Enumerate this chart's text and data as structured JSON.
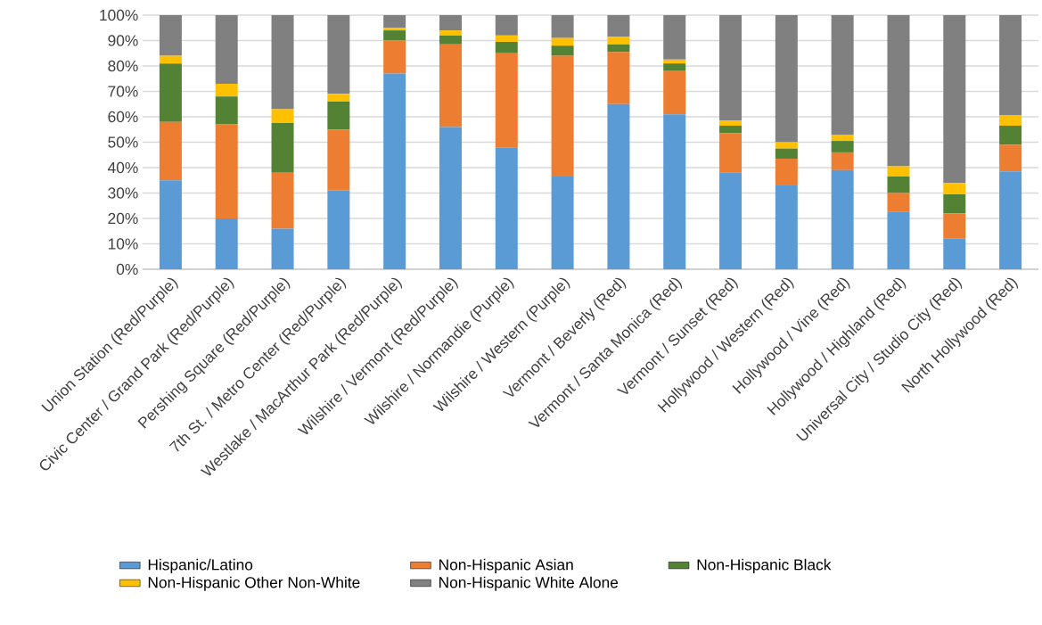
{
  "chart_data": {
    "type": "bar",
    "stacked": true,
    "categories": [
      "Union Station (Red/Purple)",
      "Civic Center / Grand Park (Red/Purple)",
      "Pershing Square (Red/Purple)",
      "7th St. / Metro Center (Red/Purple)",
      "Westlake / MacArthur Park (Red/Purple)",
      "Wilshire / Vermont (Red/Purple)",
      "Wilshire / Normandie (Purple)",
      "Wilshire / Western (Purple)",
      "Vermont / Beverly (Red)",
      "Vermont / Santa Monica (Red)",
      "Vermont / Sunset (Red)",
      "Hollywood / Western (Red)",
      "Hollywood / Vine (Red)",
      "Hollywood / Highland (Red)",
      "Universal City / Studio City (Red)",
      "North Hollywood (Red)"
    ],
    "series": [
      {
        "name": "Hispanic/Latino",
        "color": "#5b9bd5",
        "values": [
          35,
          20,
          16,
          31,
          77,
          56,
          48,
          36.5,
          65,
          61,
          38,
          33,
          39,
          22.5,
          12,
          38.5
        ]
      },
      {
        "name": "Non-Hispanic Asian",
        "color": "#ed7d31",
        "values": [
          23,
          37,
          22,
          24,
          13,
          32.5,
          37,
          47.5,
          20.5,
          17,
          15.5,
          10.5,
          7,
          7.5,
          10,
          10.5
        ]
      },
      {
        "name": "Non-Hispanic Black",
        "color": "#548235",
        "values": [
          23,
          11,
          19.5,
          11,
          4,
          3.5,
          4.5,
          4,
          3,
          3,
          3,
          4,
          4.5,
          6.5,
          7.5,
          7.5
        ]
      },
      {
        "name": "Non-Hispanic Other Non-White",
        "color": "#ffc000",
        "values": [
          3,
          5,
          5.5,
          3,
          1,
          2,
          2.5,
          3,
          3,
          1.5,
          2,
          2.5,
          2.5,
          4,
          4.5,
          4
        ]
      },
      {
        "name": "Non-Hispanic White Alone",
        "color": "#808080",
        "values": [
          16,
          27,
          37,
          31,
          5,
          6,
          8,
          9,
          8.5,
          17.5,
          41.5,
          50,
          47,
          59.5,
          66,
          39.5
        ]
      }
    ],
    "ylim": [
      0,
      100
    ],
    "yticks": [
      {
        "value": 0,
        "label": "0%"
      },
      {
        "value": 10,
        "label": "10%"
      },
      {
        "value": 20,
        "label": "20%"
      },
      {
        "value": 30,
        "label": "30%"
      },
      {
        "value": 40,
        "label": "40%"
      },
      {
        "value": 50,
        "label": "50%"
      },
      {
        "value": 60,
        "label": "60%"
      },
      {
        "value": 70,
        "label": "70%"
      },
      {
        "value": 80,
        "label": "80%"
      },
      {
        "value": 90,
        "label": "90%"
      },
      {
        "value": 100,
        "label": "100%"
      }
    ],
    "grid": "y",
    "legend": "bottom"
  }
}
